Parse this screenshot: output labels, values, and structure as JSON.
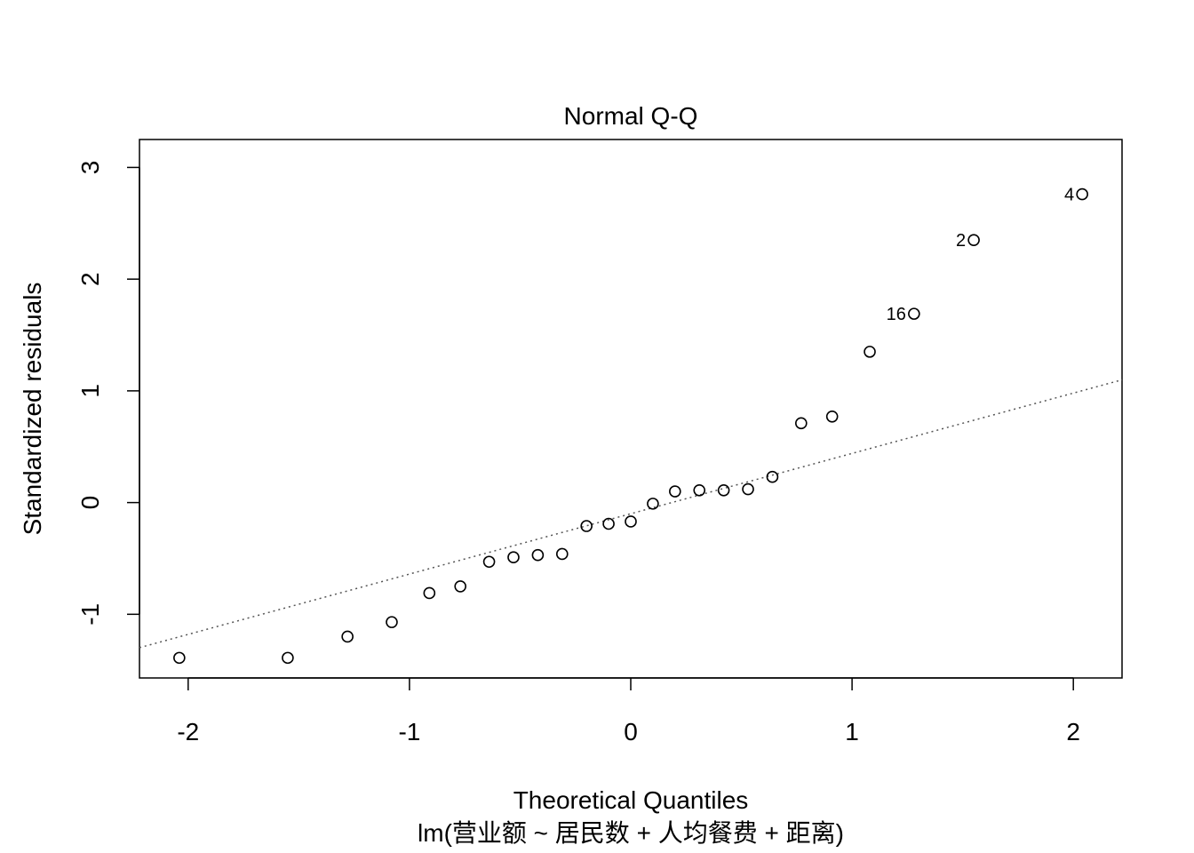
{
  "chart_data": {
    "type": "scatter",
    "title": "Normal Q-Q",
    "xlabel": "Theoretical Quantiles",
    "ylabel": "Standardized residuals",
    "subtitle": "lm(营业额 ~ 居民数 + 人均餐费 + 距离)",
    "xlim": [
      -2.22,
      2.22
    ],
    "ylim": [
      -1.57,
      3.25
    ],
    "xticks": [
      -2,
      -1,
      0,
      1,
      2
    ],
    "xtick_labels": [
      "-2",
      "-1",
      "0",
      "1",
      "2"
    ],
    "yticks": [
      -1,
      0,
      1,
      2,
      3
    ],
    "ytick_labels": [
      "-1",
      "0",
      "1",
      "2",
      "3"
    ],
    "grid": false,
    "reference_line": {
      "intercept": -0.1,
      "slope": 0.54,
      "style": "dotted",
      "color": "#555555"
    },
    "points": [
      {
        "x": -2.04,
        "y": -1.39
      },
      {
        "x": -1.55,
        "y": -1.39
      },
      {
        "x": -1.28,
        "y": -1.2
      },
      {
        "x": -1.08,
        "y": -1.07
      },
      {
        "x": -0.91,
        "y": -0.81
      },
      {
        "x": -0.77,
        "y": -0.75
      },
      {
        "x": -0.64,
        "y": -0.53
      },
      {
        "x": -0.53,
        "y": -0.49
      },
      {
        "x": -0.42,
        "y": -0.47
      },
      {
        "x": -0.31,
        "y": -0.46
      },
      {
        "x": -0.2,
        "y": -0.21
      },
      {
        "x": -0.1,
        "y": -0.19
      },
      {
        "x": 0.0,
        "y": -0.17
      },
      {
        "x": 0.1,
        "y": -0.01
      },
      {
        "x": 0.2,
        "y": 0.1
      },
      {
        "x": 0.31,
        "y": 0.11
      },
      {
        "x": 0.42,
        "y": 0.11
      },
      {
        "x": 0.53,
        "y": 0.12
      },
      {
        "x": 0.64,
        "y": 0.23
      },
      {
        "x": 0.77,
        "y": 0.71
      },
      {
        "x": 0.91,
        "y": 0.77
      },
      {
        "x": 1.08,
        "y": 1.35
      },
      {
        "x": 1.28,
        "y": 1.69,
        "label": "16"
      },
      {
        "x": 1.55,
        "y": 2.35,
        "label": "2"
      },
      {
        "x": 2.04,
        "y": 2.76,
        "label": "4"
      }
    ]
  }
}
